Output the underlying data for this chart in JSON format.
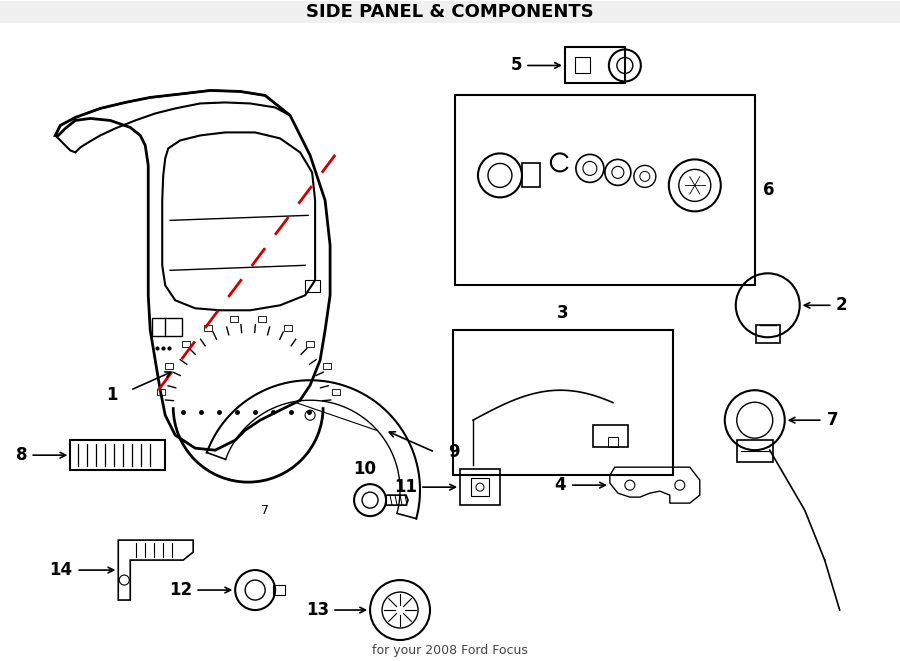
{
  "title": "SIDE PANEL & COMPONENTS",
  "subtitle": "for your 2008 Ford Focus",
  "bg_color": "#ffffff",
  "line_color": "#000000",
  "dashed_color": "#cc0000",
  "fig_width": 9.0,
  "fig_height": 6.61
}
